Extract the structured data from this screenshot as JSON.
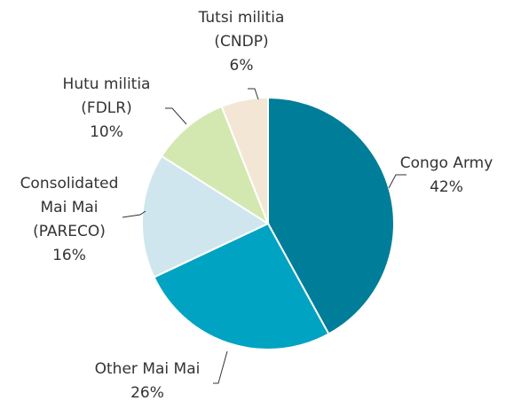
{
  "chart_data": {
    "type": "pie",
    "categories": [
      "Congo Army",
      "Other Mai Mai",
      "Consolidated Mai Mai (PARECO)",
      "Hutu militia (FDLR)",
      "Tutsi militia (CNDP)"
    ],
    "values": [
      42,
      26,
      16,
      10,
      6
    ],
    "value_labels": [
      "42%",
      "26%",
      "16%",
      "10%",
      "6%"
    ],
    "colors": [
      "#007d99",
      "#00a3c1",
      "#d0e6ee",
      "#d3e8b0",
      "#f3e6d4"
    ]
  }
}
